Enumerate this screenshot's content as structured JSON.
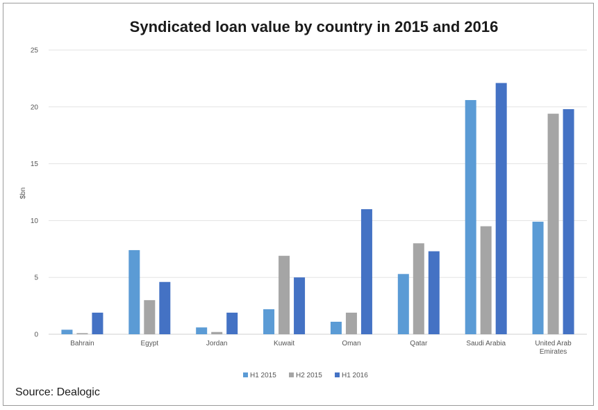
{
  "chart_data": {
    "type": "bar",
    "title": "Syndicated loan value by country in 2015 and 2016",
    "ylabel": "$bn",
    "xlabel": "",
    "ylim": [
      0,
      25
    ],
    "yticks": [
      "0",
      "5",
      "10",
      "15",
      "20",
      "25"
    ],
    "grid": true,
    "legend_position": "bottom",
    "categories": [
      "Bahrain",
      "Egypt",
      "Jordan",
      "Kuwait",
      "Oman",
      "Qatar",
      "Saudi Arabia",
      "United Arab Emirates"
    ],
    "category_lines": [
      [
        "Bahrain"
      ],
      [
        "Egypt"
      ],
      [
        "Jordan"
      ],
      [
        "Kuwait"
      ],
      [
        "Oman"
      ],
      [
        "Qatar"
      ],
      [
        "Saudi Arabia"
      ],
      [
        "United Arab",
        "Emirates"
      ]
    ],
    "series": [
      {
        "name": "H1 2015",
        "color": "#5b9bd5",
        "values": [
          0.4,
          7.4,
          0.6,
          2.2,
          1.1,
          5.3,
          20.6,
          9.9
        ]
      },
      {
        "name": "H2 2015",
        "color": "#a5a5a5",
        "values": [
          0.1,
          3.0,
          0.2,
          6.9,
          1.9,
          8.0,
          9.5,
          19.4
        ]
      },
      {
        "name": "H1 2016",
        "color": "#4472c4",
        "values": [
          1.9,
          4.6,
          1.9,
          5.0,
          11.0,
          7.3,
          22.1,
          19.8
        ]
      }
    ]
  },
  "source": "Source: Dealogic"
}
